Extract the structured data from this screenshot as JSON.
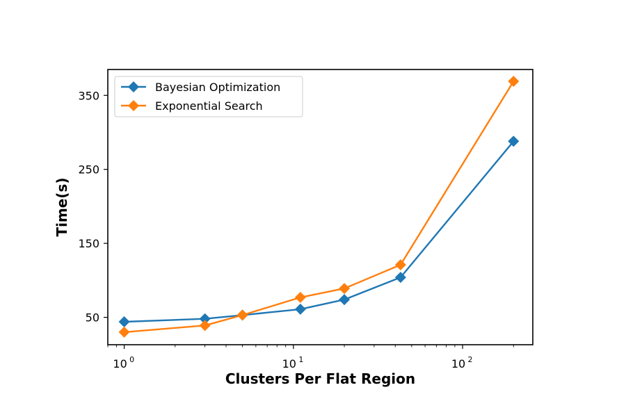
{
  "chart_data": {
    "type": "line",
    "title": "",
    "xlabel": "Clusters Per Flat Region",
    "ylabel": "Time(s)",
    "xscale": "log",
    "xlim": [
      0.8,
      260
    ],
    "ylim": [
      13,
      385
    ],
    "x_ticks": [
      {
        "value": 1,
        "base": "10",
        "exp": "0"
      },
      {
        "value": 10,
        "base": "10",
        "exp": "1"
      },
      {
        "value": 100,
        "base": "10",
        "exp": "2"
      }
    ],
    "y_ticks": [
      {
        "value": 50,
        "label": "50"
      },
      {
        "value": 150,
        "label": "150"
      },
      {
        "value": 250,
        "label": "250"
      },
      {
        "value": 350,
        "label": "350"
      }
    ],
    "legend_position": "top-left",
    "grid": false,
    "series": [
      {
        "name": "Bayesian Optimization",
        "color": "#1f77b4",
        "marker": "diamond",
        "points": [
          {
            "x": 1,
            "y": 44
          },
          {
            "x": 3,
            "y": 48
          },
          {
            "x": 5,
            "y": 53
          },
          {
            "x": 11,
            "y": 61
          },
          {
            "x": 20,
            "y": 74
          },
          {
            "x": 43,
            "y": 104
          },
          {
            "x": 200,
            "y": 288
          }
        ]
      },
      {
        "name": "Exponential Search",
        "color": "#ff7f0e",
        "marker": "diamond",
        "points": [
          {
            "x": 1,
            "y": 30
          },
          {
            "x": 3,
            "y": 39
          },
          {
            "x": 5,
            "y": 53
          },
          {
            "x": 11,
            "y": 77
          },
          {
            "x": 20,
            "y": 89
          },
          {
            "x": 43,
            "y": 121
          },
          {
            "x": 200,
            "y": 369
          }
        ]
      }
    ]
  }
}
